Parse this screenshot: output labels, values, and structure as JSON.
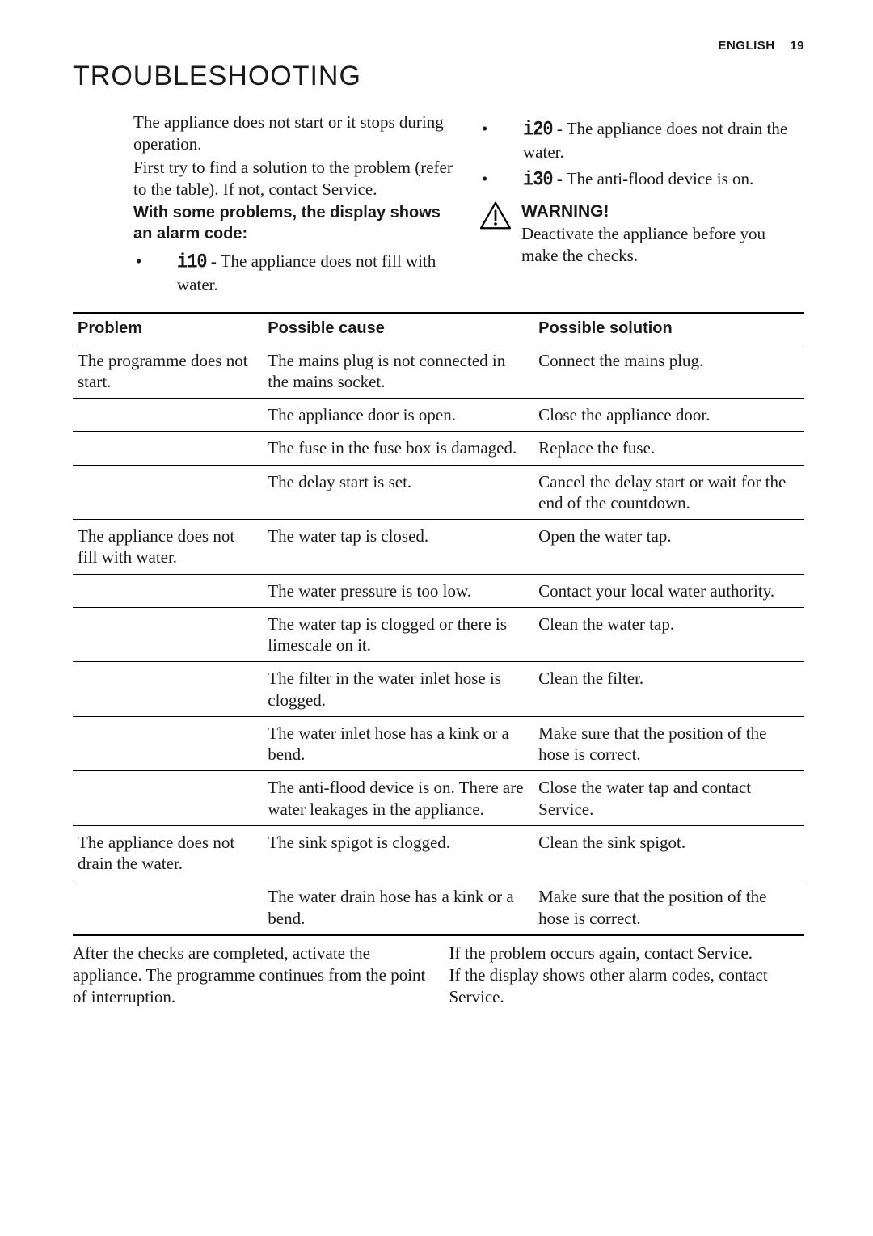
{
  "header": {
    "lang": "ENGLISH",
    "page_number": "19"
  },
  "title": "TROUBLESHOOTING",
  "intro_left": {
    "p1": "The appliance does not start or it stops during operation.",
    "p2": "First try to find a solution to the problem (refer to the table). If not, contact Service.",
    "bold_line": "With some problems, the display shows an alarm code:",
    "codes": [
      {
        "code": "i10",
        "text": " - The appliance does not fill with water."
      }
    ]
  },
  "intro_right": {
    "codes": [
      {
        "code": "i20",
        "text": " - The appliance does not drain the water."
      },
      {
        "code": "i30",
        "text": " - The anti-flood device is on."
      }
    ],
    "warning_title": "WARNING!",
    "warning_text": "Deactivate the appliance before you make the checks."
  },
  "table": {
    "headers": [
      "Problem",
      "Possible cause",
      "Possible solution"
    ],
    "rows": [
      [
        "The programme does not start.",
        "The mains plug is not connected in the mains socket.",
        "Connect the mains plug."
      ],
      [
        "",
        "The appliance door is open.",
        "Close the appliance door."
      ],
      [
        "",
        "The fuse in the fuse box is damaged.",
        "Replace the fuse."
      ],
      [
        "",
        "The delay start is set.",
        "Cancel the delay start or wait for the end of the countdown."
      ],
      [
        "The appliance does not fill with water.",
        "The water tap is closed.",
        "Open the water tap."
      ],
      [
        "",
        "The water pressure is too low.",
        "Contact your local water authority."
      ],
      [
        "",
        "The water tap is clogged or there is limescale on it.",
        "Clean the water tap."
      ],
      [
        "",
        "The filter in the water inlet hose is clogged.",
        "Clean the filter."
      ],
      [
        "",
        "The water inlet hose has a kink or a bend.",
        "Make sure that the position of the hose is correct."
      ],
      [
        "",
        "The anti-flood device is on. There are water leakages in the appliance.",
        "Close the water tap and contact Service."
      ],
      [
        "The appliance does not drain the water.",
        "The sink spigot is clogged.",
        "Clean the sink spigot."
      ],
      [
        "",
        "The water drain hose has a kink or a bend.",
        "Make sure that the position of the hose is correct."
      ]
    ]
  },
  "footer": {
    "left": "After the checks are completed, activate the appliance. The programme continues from the point of interruption.",
    "right_p1": "If the problem occurs again, contact Service.",
    "right_p2": "If the display shows other alarm codes, contact Service."
  }
}
